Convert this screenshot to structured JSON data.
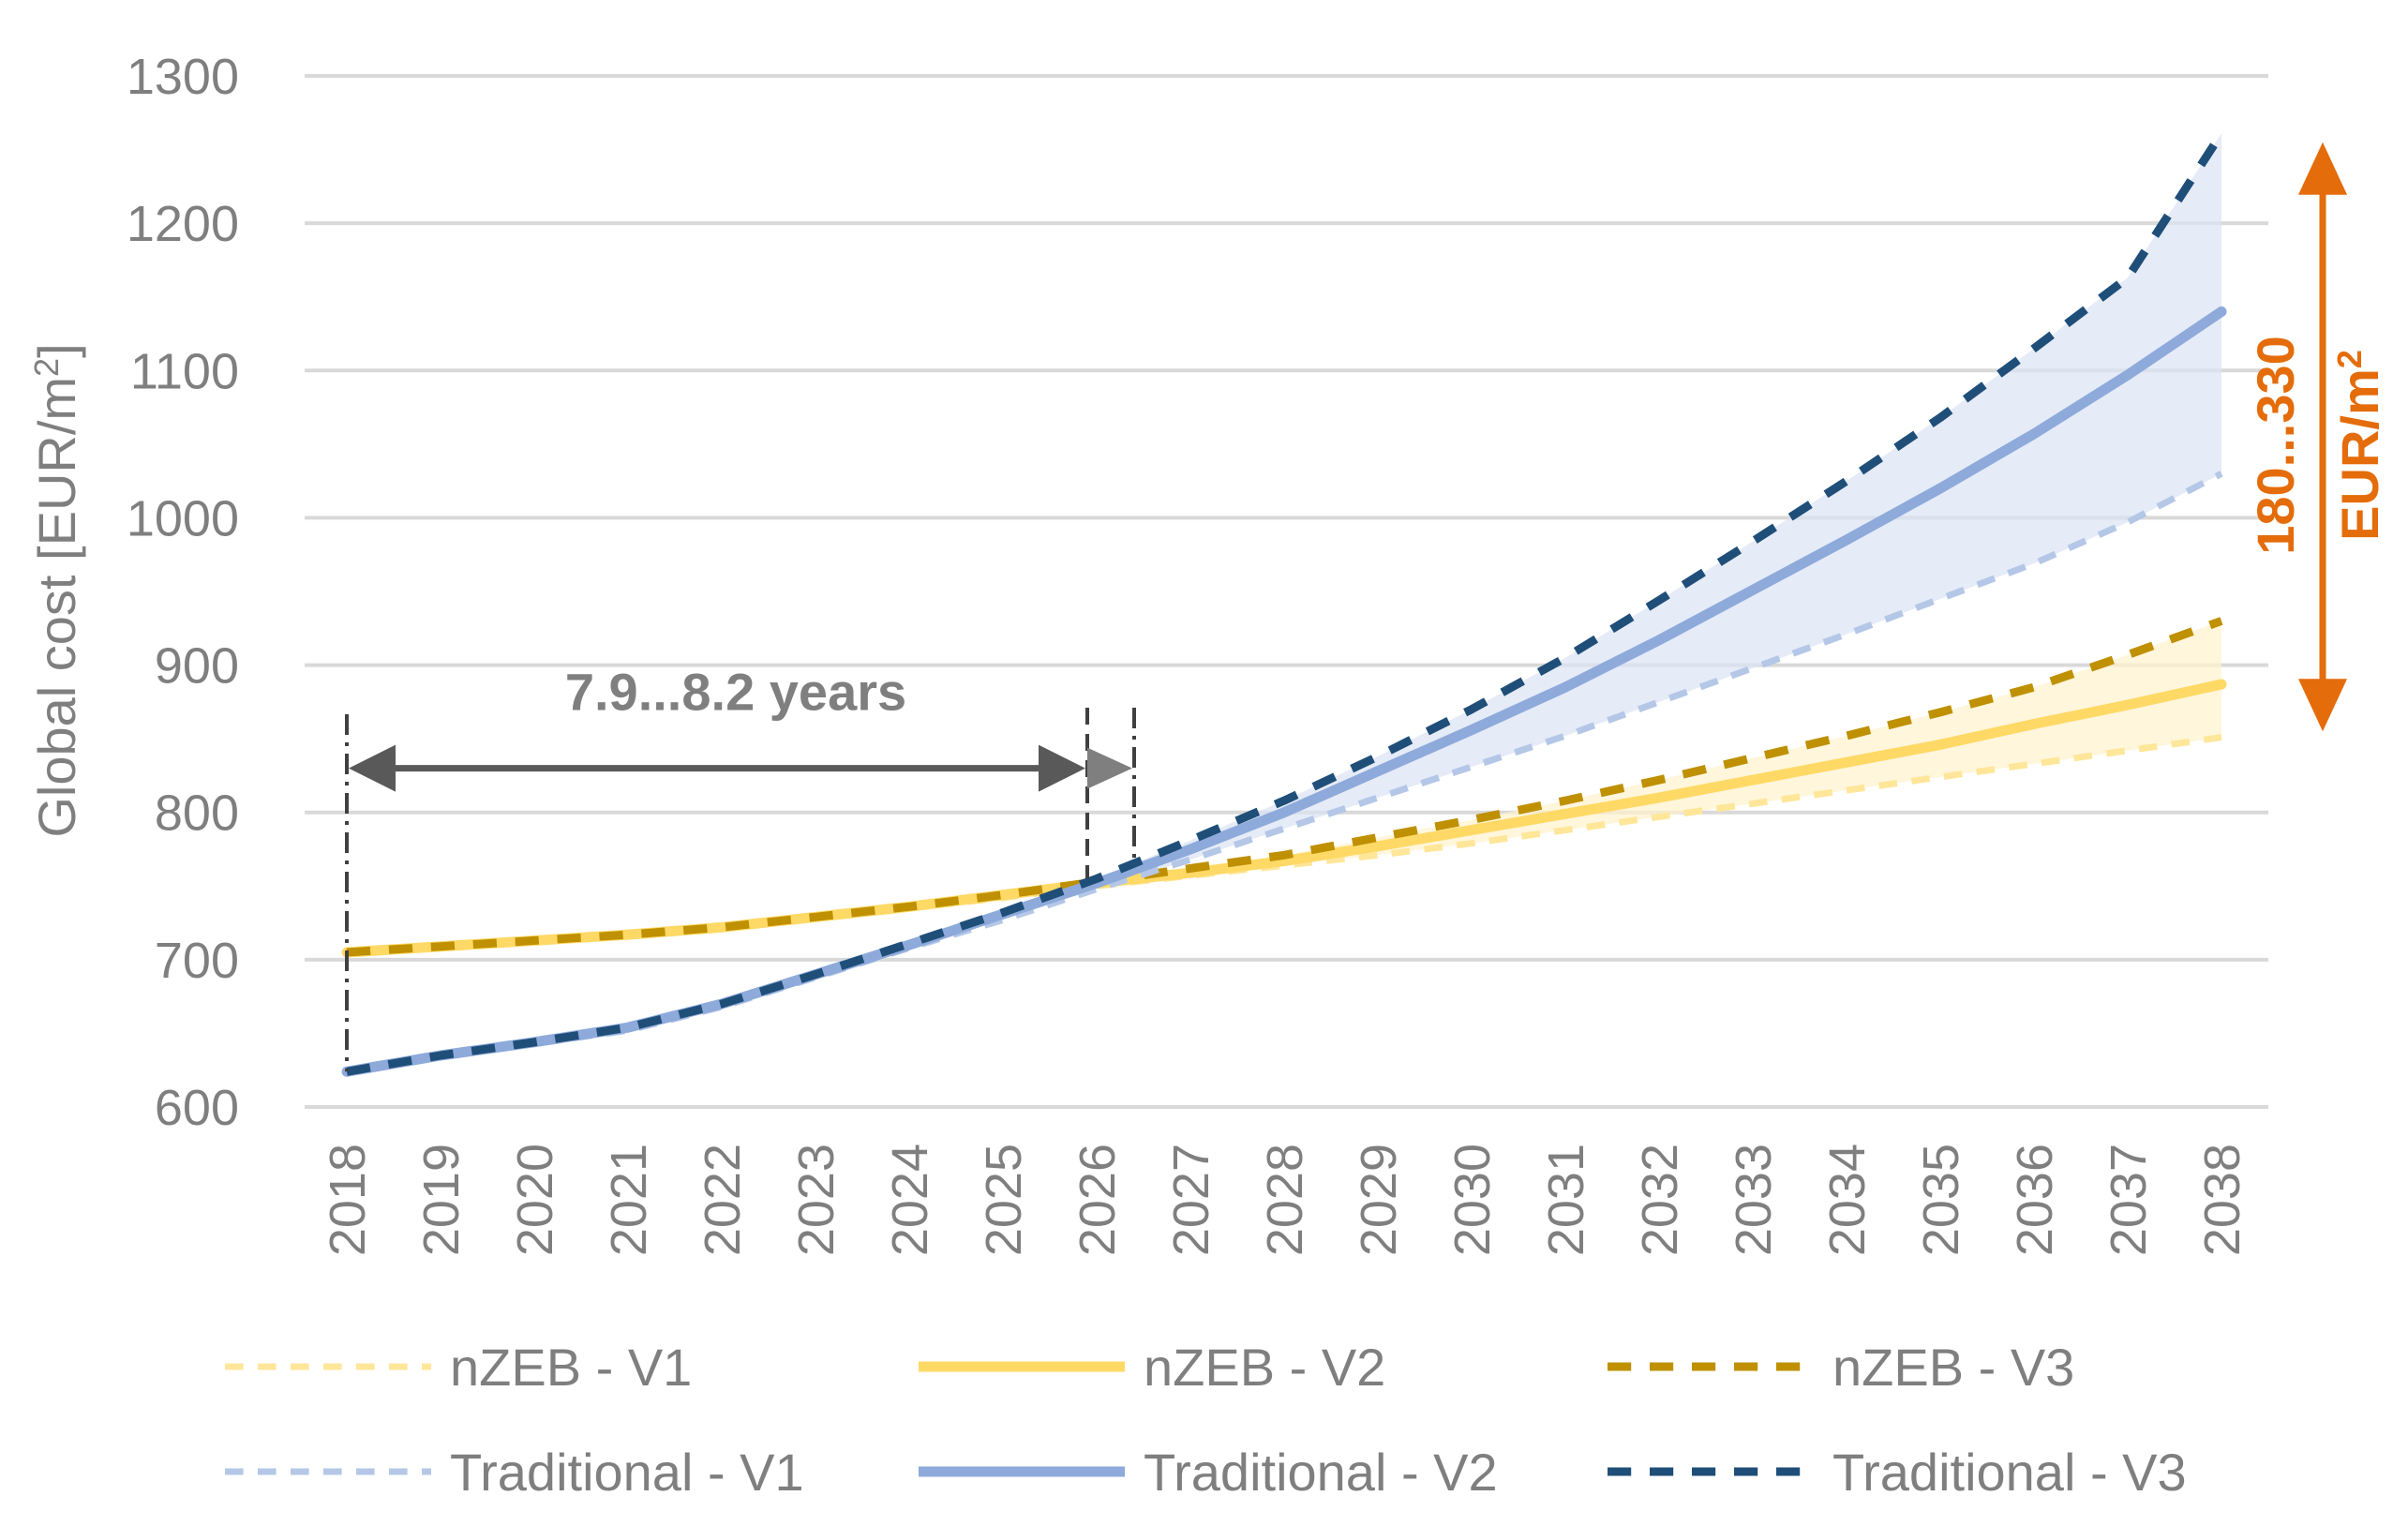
{
  "chart_data": {
    "type": "line",
    "xlabel": "",
    "ylabel": "Global cost [EUR/m",
    "ylabel_sup": "2",
    "ylabel_suffix": "]",
    "ylim": [
      600,
      1300
    ],
    "yticks": [
      "600",
      "700",
      "800",
      "900",
      "1000",
      "1100",
      "1200",
      "1300"
    ],
    "yticks_values": [
      600,
      700,
      800,
      900,
      1000,
      1100,
      1200,
      1300
    ],
    "categories": [
      "2018",
      "2019",
      "2020",
      "2021",
      "2022",
      "2023",
      "2024",
      "2025",
      "2026",
      "2027",
      "2028",
      "2029",
      "2030",
      "2031",
      "2032",
      "2033",
      "2034",
      "2035",
      "2036",
      "2037",
      "2038"
    ],
    "grid": true,
    "legend_position": "bottom",
    "series": [
      {
        "name": "nZEB - V1",
        "color": "#ffe699",
        "style": "dashed",
        "width": 7,
        "values": [
          705,
          709,
          713,
          716,
          721,
          728,
          735,
          742,
          750,
          757,
          764,
          771,
          779,
          788,
          797,
          806,
          815,
          824,
          833,
          842,
          851
        ]
      },
      {
        "name": "nZEB - V2",
        "color": "#ffd966",
        "style": "solid",
        "width": 11,
        "values": [
          705,
          709,
          713,
          717,
          722,
          729,
          736,
          744,
          752,
          759,
          767,
          777,
          788,
          799,
          810,
          822,
          834,
          846,
          860,
          873,
          887
        ]
      },
      {
        "name": "nZEB - V3",
        "color": "#bf9000",
        "style": "dashed",
        "width": 9,
        "values": [
          705,
          709,
          713,
          717,
          722,
          729,
          736,
          744,
          753,
          762,
          771,
          783,
          795,
          808,
          822,
          837,
          852,
          868,
          885,
          907,
          930
        ]
      },
      {
        "name": "Traditional - V1",
        "color": "#b4c7e7",
        "style": "dashed",
        "width": 7,
        "values": [
          624,
          635,
          643,
          652,
          668,
          688,
          708,
          727,
          748,
          768,
          789,
          810,
          831,
          852,
          875,
          898,
          921,
          945,
          969,
          997,
          1030
        ]
      },
      {
        "name": "Traditional - V2",
        "color": "#8eaadb",
        "style": "solid",
        "width": 11,
        "values": [
          624,
          635,
          644,
          654,
          670,
          690,
          710,
          731,
          752,
          775,
          800,
          828,
          856,
          885,
          917,
          951,
          985,
          1020,
          1057,
          1097,
          1140
        ]
      },
      {
        "name": "Traditional - V3",
        "color": "#1f4e79",
        "style": "dashed",
        "width": 9,
        "values": [
          624,
          635,
          644,
          654,
          670,
          690,
          711,
          732,
          755,
          781,
          808,
          838,
          870,
          905,
          944,
          984,
          1025,
          1068,
          1115,
          1163,
          1261
        ]
      }
    ],
    "bands": [
      {
        "between": [
          "nZEB - V1",
          "nZEB - V3"
        ],
        "color": "#fff2cc"
      },
      {
        "between": [
          "Traditional - V1",
          "Traditional - V3"
        ],
        "color": "#dae3f3"
      }
    ],
    "annotations": {
      "payback": {
        "text": "7.9...8.2 years",
        "from": 2018,
        "to_min": 2025.9,
        "to_max": 2026.4,
        "y": 830
      },
      "difference": {
        "line1": "180...330",
        "line2": "EUR/m",
        "line2_sup": "2",
        "y_from": 1255,
        "y_to": 855
      }
    }
  }
}
